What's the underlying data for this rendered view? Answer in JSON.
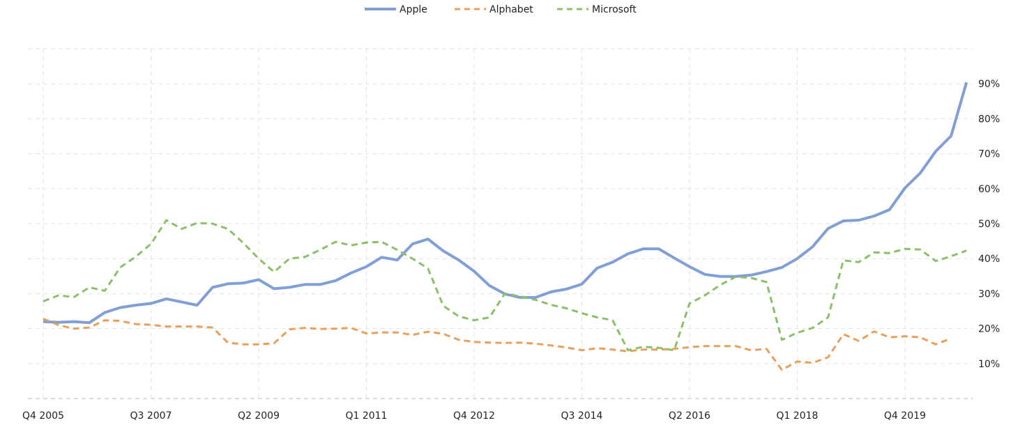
{
  "chart_data": {
    "type": "line",
    "title": "",
    "xlabel": "",
    "ylabel": "",
    "ylim": [
      0,
      100
    ],
    "y_ticks": [
      "10%",
      "20%",
      "30%",
      "40%",
      "50%",
      "60%",
      "70%",
      "80%",
      "90%"
    ],
    "y_tick_values": [
      10,
      20,
      30,
      40,
      50,
      60,
      70,
      80,
      90
    ],
    "y_axis_position": "right",
    "grid": true,
    "legend_position": "top-center",
    "x_tick_labels": [
      "Q4 2005",
      "Q3 2007",
      "Q2 2009",
      "Q1 2011",
      "Q4 2012",
      "Q3 2014",
      "Q2 2016",
      "Q1 2018",
      "Q4 2019"
    ],
    "x_tick_indices": [
      0,
      7,
      14,
      21,
      28,
      35,
      42,
      49,
      56
    ],
    "categories": [
      "Q4 2005",
      "Q1 2006",
      "Q2 2006",
      "Q3 2006",
      "Q4 2006",
      "Q1 2007",
      "Q2 2007",
      "Q3 2007",
      "Q4 2007",
      "Q1 2008",
      "Q2 2008",
      "Q3 2008",
      "Q4 2008",
      "Q1 2009",
      "Q2 2009",
      "Q3 2009",
      "Q4 2009",
      "Q1 2010",
      "Q2 2010",
      "Q3 2010",
      "Q4 2010",
      "Q1 2011",
      "Q2 2011",
      "Q3 2011",
      "Q4 2011",
      "Q1 2012",
      "Q2 2012",
      "Q3 2012",
      "Q4 2012",
      "Q1 2013",
      "Q2 2013",
      "Q3 2013",
      "Q4 2013",
      "Q1 2014",
      "Q2 2014",
      "Q3 2014",
      "Q4 2014",
      "Q1 2015",
      "Q2 2015",
      "Q3 2015",
      "Q4 2015",
      "Q1 2016",
      "Q2 2016",
      "Q3 2016",
      "Q4 2016",
      "Q1 2017",
      "Q2 2017",
      "Q3 2017",
      "Q4 2017",
      "Q1 2018",
      "Q2 2018",
      "Q3 2018",
      "Q4 2018",
      "Q1 2019",
      "Q2 2019",
      "Q3 2019",
      "Q4 2019",
      "Q1 2020",
      "Q2 2020",
      "Q3 2020",
      "Q4 2020"
    ],
    "series": [
      {
        "name": "Apple",
        "color": "#7f9fd5",
        "dash": "solid",
        "values": [
          22,
          21.8,
          22,
          21.7,
          24.6,
          26,
          26.7,
          27.2,
          28.5,
          27.6,
          26.7,
          31.8,
          32.8,
          33,
          34,
          31.4,
          31.8,
          32.6,
          32.6,
          33.7,
          35.9,
          37.7,
          40.4,
          39.6,
          44.2,
          45.6,
          42.2,
          39.6,
          36.4,
          32.3,
          29.9,
          28.9,
          28.9,
          30.5,
          31.3,
          32.7,
          37.3,
          39,
          41.4,
          42.8,
          42.8,
          40.2,
          37.7,
          35.5,
          34.9,
          34.9,
          35.3,
          36.3,
          37.5,
          40,
          43.4,
          48.6,
          50.8,
          51,
          52.2,
          54,
          60.2,
          64.5,
          70.7,
          75.1,
          90.4
        ]
      },
      {
        "name": "Alphabet",
        "color": "#e9a05a",
        "dash": "dashed",
        "values": [
          22.8,
          21,
          20,
          20.3,
          22.4,
          22.2,
          21.3,
          21.1,
          20.6,
          20.6,
          20.6,
          20.3,
          16,
          15.5,
          15.5,
          15.8,
          19.8,
          20.2,
          19.9,
          20,
          20.2,
          18.6,
          18.9,
          18.9,
          18.2,
          19.1,
          18.5,
          16.8,
          16.2,
          16,
          15.9,
          16,
          15.7,
          15.2,
          14.6,
          13.8,
          14.4,
          14,
          13.5,
          14,
          14,
          14.2,
          14.7,
          15,
          15,
          15,
          13.8,
          14.2,
          8.2,
          10.6,
          10.2,
          11.8,
          18.4,
          16.5,
          19.2,
          17.5,
          17.8,
          17.5,
          15.5,
          17.2,
          null
        ]
      },
      {
        "name": "Microsoft",
        "color": "#8cc068",
        "dash": "dashed",
        "values": [
          27.8,
          29.5,
          29,
          31.8,
          30.8,
          37.5,
          40.5,
          44.2,
          51,
          48.5,
          50.2,
          50,
          48.5,
          44.5,
          40,
          36.2,
          40,
          40.5,
          42.5,
          44.8,
          43.8,
          44.6,
          44.8,
          42.5,
          40,
          37.2,
          26.5,
          23.5,
          22.4,
          23.2,
          30,
          29.2,
          28.2,
          26.8,
          25.8,
          24.4,
          23.2,
          22.4,
          13.8,
          14.8,
          14.5,
          13.8,
          27.2,
          29.5,
          32.5,
          34.8,
          34.5,
          33.3,
          16.8,
          18.8,
          20.2,
          23.2,
          39.5,
          39,
          41.8,
          41.6,
          42.8,
          42.6,
          39.3,
          40.7,
          42.3
        ]
      }
    ]
  }
}
